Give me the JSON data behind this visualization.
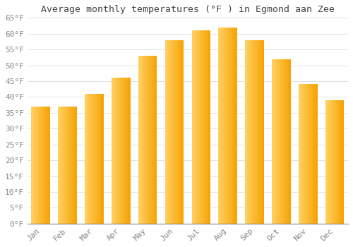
{
  "title": "Average monthly temperatures (°F ) in Egmond aan Zee",
  "months": [
    "Jan",
    "Feb",
    "Mar",
    "Apr",
    "May",
    "Jun",
    "Jul",
    "Aug",
    "Sep",
    "Oct",
    "Nov",
    "Dec"
  ],
  "values": [
    37,
    37,
    41,
    46,
    53,
    58,
    61,
    62,
    58,
    52,
    44,
    39
  ],
  "bar_color_light": "#FFD060",
  "bar_color_dark": "#F5A000",
  "background_color": "#FFFFFF",
  "grid_color": "#DDDDDD",
  "tick_label_color": "#888888",
  "title_color": "#444444",
  "ylim": [
    0,
    65
  ],
  "yticks": [
    0,
    5,
    10,
    15,
    20,
    25,
    30,
    35,
    40,
    45,
    50,
    55,
    60,
    65
  ],
  "title_fontsize": 9.5,
  "tick_fontsize": 8,
  "bar_width": 0.7,
  "figsize": [
    5.0,
    3.5
  ],
  "dpi": 100
}
